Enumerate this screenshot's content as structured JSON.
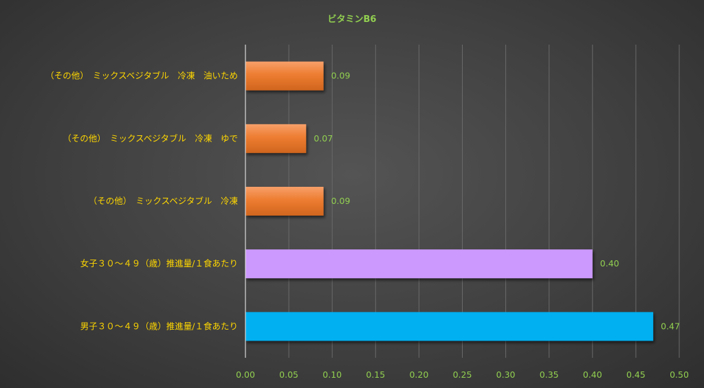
{
  "chart_data": {
    "type": "bar",
    "orientation": "horizontal",
    "title": "ビタミンB6",
    "categories": [
      "（その他）　ミックスベジタブル　冷凍　油いため",
      "（その他）　ミックスベジタブル　冷凍　ゆで",
      "（その他）　ミックスベジタブル　冷凍",
      "女子３０～４９（歳）推進量/１食あたり",
      "男子３０～４９（歳）推進量/１食あたり"
    ],
    "values": [
      0.09,
      0.07,
      0.09,
      0.4,
      0.47
    ],
    "value_labels": [
      "0.09",
      "0.07",
      "0.09",
      "0.40",
      "0.47"
    ],
    "bar_colors": [
      "#ed7d31",
      "#ed7d31",
      "#ed7d31",
      "#cc99ff",
      "#00b0f0"
    ],
    "xlabel": "",
    "ylabel": "",
    "xlim": [
      0,
      0.5
    ],
    "xticks": [
      0,
      0.05,
      0.1,
      0.15,
      0.2,
      0.25,
      0.3,
      0.35,
      0.4,
      0.45,
      0.5
    ],
    "xtick_labels": [
      "0.00",
      "0.05",
      "0.10",
      "0.15",
      "0.20",
      "0.25",
      "0.30",
      "0.35",
      "0.40",
      "0.45",
      "0.50"
    ],
    "grid": true,
    "legend": false
  }
}
